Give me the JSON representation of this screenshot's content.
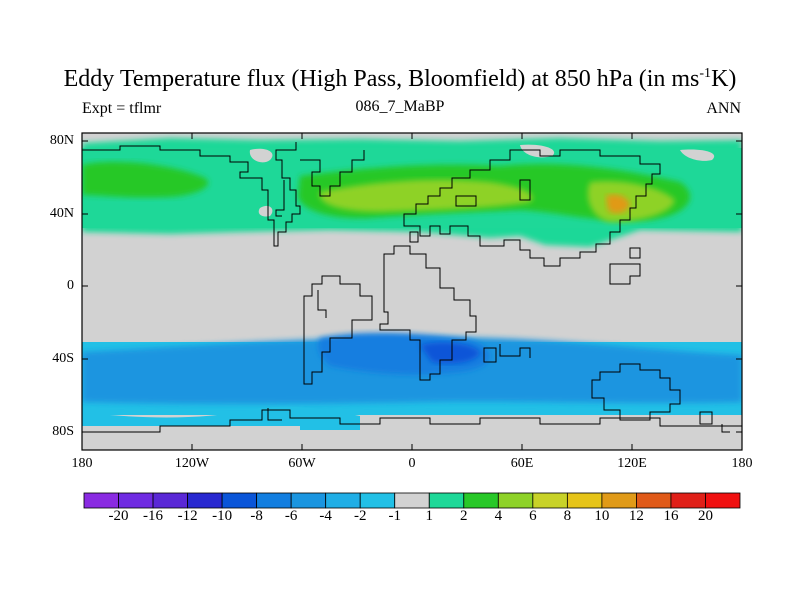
{
  "title": "Eddy Temperature flux (High Pass, Bloomfield) at 850 hPa (in ms",
  "title_sup": "-1",
  "title_end": "K)",
  "expt": "Expt = tflmr",
  "subtitle": "086_7_MaBP",
  "season": "ANN",
  "lat_labels": [
    "80N",
    "40N",
    "0",
    "40S",
    "80S"
  ],
  "lon_labels": [
    "180",
    "120W",
    "60W",
    "0",
    "60E",
    "120E",
    "180"
  ],
  "colorbar": {
    "labels": [
      "-20",
      "-16",
      "-12",
      "-10",
      "-8",
      "-6",
      "-4",
      "-2",
      "-1",
      "1",
      "2",
      "4",
      "6",
      "8",
      "10",
      "12",
      "16",
      "20"
    ],
    "colors": [
      "#8a2be2",
      "#6f2be2",
      "#5a28d6",
      "#2828d0",
      "#0a55d8",
      "#127ee0",
      "#1a95e0",
      "#20aee6",
      "#22c0e6",
      "#d2d2d2",
      "#1ed898",
      "#28c828",
      "#8ed228",
      "#c8d228",
      "#e6c418",
      "#e09a18",
      "#e05a18",
      "#e02018",
      "#f01010"
    ]
  },
  "colors": {
    "land_ocean_gray": "#d2d2d2",
    "green_light": "#1ed898",
    "green": "#28c828",
    "yellowgreen": "#8ed228",
    "orange": "#e09a18",
    "blue_light": "#22c0e6",
    "blue": "#1a95e0",
    "blue_dark": "#127ee0"
  }
}
